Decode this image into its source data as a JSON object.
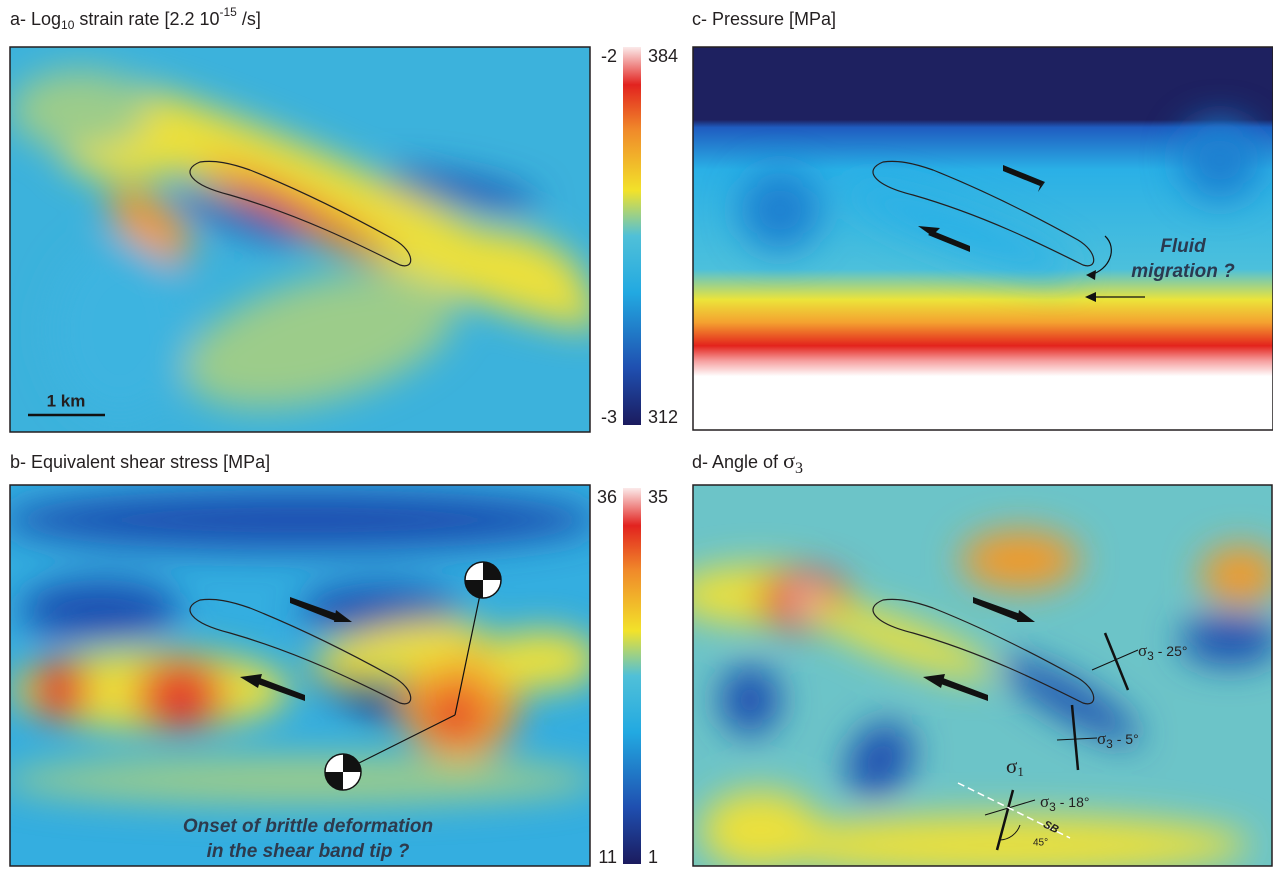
{
  "panels": {
    "a": {
      "title": [
        "a- Log",
        "10",
        " strain rate [2.2 10",
        "-15",
        " /s]"
      ],
      "scale_bar": "1 km"
    },
    "b": {
      "title": [
        "b- Equivalent shear stress [MPa]"
      ],
      "annotation": [
        "Onset of brittle deformation",
        "in the shear band tip ?"
      ]
    },
    "c": {
      "title": [
        "c- Pressure [MPa]"
      ],
      "annotation": [
        "Fluid",
        "migration ?"
      ]
    },
    "d": {
      "title": [
        "d- Angle of ",
        "σ",
        "3"
      ],
      "labels": [
        [
          "σ",
          "3",
          " - 25°"
        ],
        [
          "σ",
          "3",
          " - 5°"
        ],
        [
          "σ",
          "3",
          " - 18°"
        ]
      ],
      "sigma1": [
        "σ",
        "1"
      ],
      "band": "SB",
      "angle": "45°"
    }
  },
  "colorbars": [
    {
      "left_top": "-2",
      "left_bottom": "-3",
      "right_top": "384",
      "right_bottom": "312"
    },
    {
      "left_top": "36",
      "left_bottom": "11",
      "right_top": "35",
      "right_bottom": "1"
    }
  ]
}
